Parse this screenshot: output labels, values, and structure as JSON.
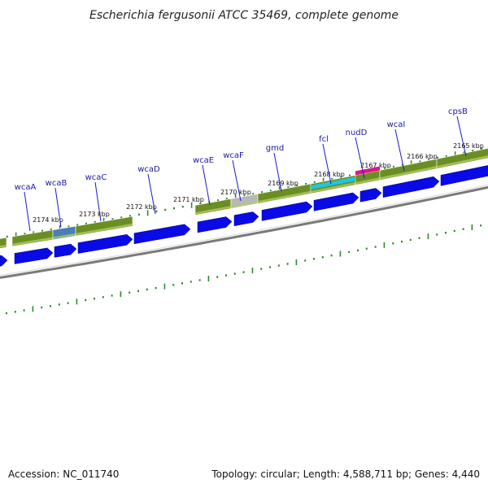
{
  "title": "Escherichia fergusonii ATCC 35469, complete genome",
  "footer": {
    "accession": "Accession: NC_011740",
    "summary": "Topology: circular; Length: 4,588,711 bp; Genes: 4,440"
  },
  "colors": {
    "cds_arrow": "#0a0ae6",
    "gene_bar": "#6b8e23",
    "gene_bar_hilite": "#b3cc66",
    "backbone": "#7a7a7a",
    "ticks": "#2d8a2d",
    "label": "#1a1aa8",
    "leader": "#1a1acc"
  },
  "kbp_ticks": [
    {
      "label": "2165 kbp",
      "kbp": 2165
    },
    {
      "label": "2166 kbp",
      "kbp": 2166
    },
    {
      "label": "2167 kbp",
      "kbp": 2167
    },
    {
      "label": "2168 kbp",
      "kbp": 2168
    },
    {
      "label": "2169 kbp",
      "kbp": 2169
    },
    {
      "label": "2170 kbp",
      "kbp": 2170
    },
    {
      "label": "2171 kbp",
      "kbp": 2171
    },
    {
      "label": "2172 kbp",
      "kbp": 2172
    },
    {
      "label": "2173 kbp",
      "kbp": 2173
    },
    {
      "label": "2174 kbp",
      "kbp": 2174
    }
  ],
  "genes": [
    {
      "name": "cpsB"
    },
    {
      "name": "wcaI"
    },
    {
      "name": "nudD"
    },
    {
      "name": "fcl"
    },
    {
      "name": "gmd"
    },
    {
      "name": "wcaF"
    },
    {
      "name": "wcaE"
    },
    {
      "name": "wcaD"
    },
    {
      "name": "wcaC"
    },
    {
      "name": "wcaB"
    },
    {
      "name": "wcaA"
    }
  ]
}
